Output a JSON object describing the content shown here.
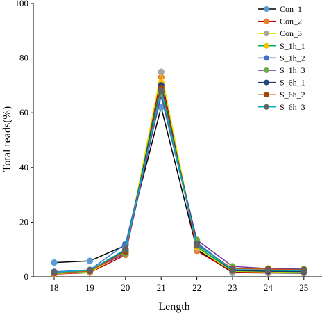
{
  "chart_data": {
    "type": "line",
    "xlabel": "Length",
    "ylabel": "Total reads(%)",
    "x": [
      18,
      19,
      20,
      21,
      22,
      23,
      24,
      25
    ],
    "ylim": [
      0,
      100
    ],
    "yticks": [
      0,
      20,
      40,
      60,
      80,
      100
    ],
    "grid": false,
    "legend_position": "top-right",
    "series": [
      {
        "name": "Con_1",
        "color": "#000000",
        "marker": "#5b9bd5",
        "values": [
          5.2,
          5.8,
          11.5,
          62.0,
          10.0,
          1.5,
          1.4,
          1.3
        ]
      },
      {
        "name": "Con_2",
        "color": "#c00000",
        "marker": "#ed7d31",
        "values": [
          1.0,
          1.5,
          8.0,
          73.0,
          9.5,
          1.8,
          1.5,
          1.4
        ]
      },
      {
        "name": "Con_3",
        "color": "#e6e600",
        "marker": "#a5a5a5",
        "values": [
          1.2,
          1.6,
          9.0,
          75.0,
          10.5,
          2.0,
          1.8,
          1.6
        ]
      },
      {
        "name": "S_1h_1",
        "color": "#00b050",
        "marker": "#ffc000",
        "values": [
          1.3,
          2.0,
          9.5,
          71.0,
          11.0,
          2.2,
          2.0,
          1.8
        ]
      },
      {
        "name": "S_1h_2",
        "color": "#4472c4",
        "marker": "#4472c4",
        "values": [
          1.8,
          2.5,
          12.0,
          66.0,
          12.5,
          2.5,
          2.2,
          2.0
        ]
      },
      {
        "name": "S_1h_3",
        "color": "#7030a0",
        "marker": "#70ad47",
        "values": [
          1.5,
          2.3,
          8.5,
          67.0,
          13.5,
          3.8,
          3.0,
          2.8
        ]
      },
      {
        "name": "S_6h_1",
        "color": "#1f3864",
        "marker": "#264478",
        "values": [
          1.5,
          2.2,
          9.8,
          70.0,
          12.0,
          2.3,
          2.0,
          1.9
        ]
      },
      {
        "name": "S_6h_2",
        "color": "#c55a11",
        "marker": "#9e480e",
        "values": [
          1.4,
          2.1,
          9.2,
          69.0,
          11.5,
          3.0,
          2.8,
          2.5
        ]
      },
      {
        "name": "S_6h_3",
        "color": "#00b0c0",
        "marker": "#636363",
        "values": [
          1.6,
          2.4,
          10.0,
          68.0,
          11.8,
          2.6,
          2.4,
          2.2
        ]
      }
    ]
  }
}
